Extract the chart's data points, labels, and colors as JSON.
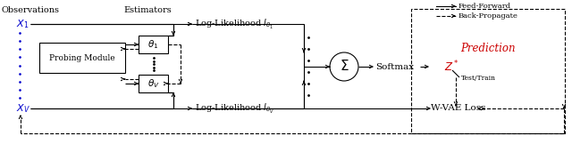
{
  "fig_width": 6.4,
  "fig_height": 1.8,
  "dpi": 100,
  "bg_color": "#ffffff",
  "blue_color": "#0000cc",
  "red_color": "#cc0000",
  "lw": 0.8,
  "observations_label": "Observations",
  "estimators_label": "Estimators",
  "x1_label": "$X_1$",
  "xv_label": "$X_V$",
  "theta1_label": "$\\theta_1$",
  "thetav_label": "$\\theta_V$",
  "probing_label": "Probing Module",
  "loglik1_label": "Log-Likelihood $l_{\\theta_1}$",
  "loglikv_label": "Log-Likelihood $l_{\\theta_V}$",
  "softmax_label": "Softmax",
  "zstar_label": "$Z^*$",
  "wvae_label": "W-VAE Loss",
  "prediction_label": "Prediction",
  "testtrain_label": "Test/Train",
  "ff_label": "Feed-Forward",
  "bp_label": "Back-Propagate",
  "sum_symbol": "$\\Sigma$"
}
